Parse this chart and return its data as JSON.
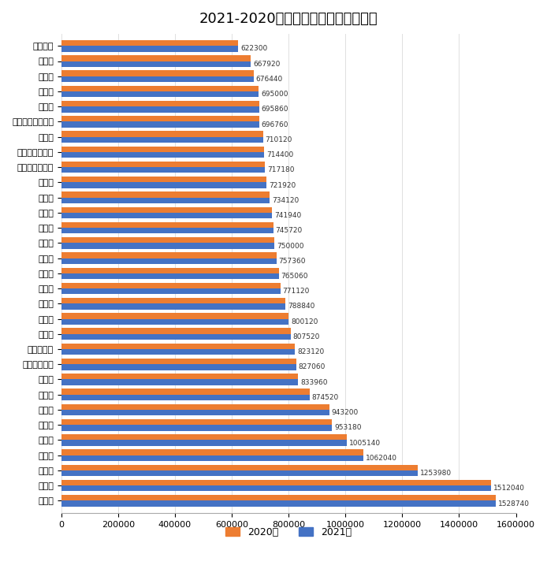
{
  "title": "2021-2020年各省交通事故死亡赔偿金",
  "categories": [
    "黑龙江省",
    "吉林省",
    "甘肃省",
    "河南省",
    "山西省",
    "新疆维吾尔自治区",
    "青海省",
    "宁夏回族自治区",
    "广西壮族自治区",
    "贵州省",
    "湖北省",
    "海南省",
    "河北省",
    "云南省",
    "陕西省",
    "四川省",
    "江西省",
    "安徽省",
    "重庆市",
    "辽宁省",
    "西藏自治区",
    "内蒙古自治区",
    "湖南省",
    "山东省",
    "福建省",
    "天津市",
    "广东省",
    "江苏省",
    "浙江省",
    "北京市",
    "上海市"
  ],
  "values_2021": [
    622300,
    667920,
    676440,
    695000,
    695860,
    696760,
    710120,
    714400,
    717180,
    721920,
    734120,
    741940,
    745720,
    750000,
    757360,
    765060,
    771120,
    788840,
    800120,
    807520,
    823120,
    827060,
    833960,
    874520,
    943200,
    953180,
    1005140,
    1062040,
    1253980,
    1512040,
    1528740
  ],
  "values_2020": [
    622300,
    667920,
    676440,
    695000,
    695860,
    696760,
    710120,
    714400,
    717180,
    721920,
    734120,
    741940,
    745720,
    750000,
    757360,
    765060,
    771120,
    788840,
    800120,
    807520,
    823120,
    827060,
    833960,
    874520,
    943200,
    953180,
    1005140,
    1062040,
    1253980,
    1512040,
    1528740
  ],
  "color_2020": "#ED7D31",
  "color_2021": "#4472C4",
  "legend_2020": "2020年",
  "legend_2021": "2021年",
  "xlim": [
    0,
    1600000
  ],
  "xticks": [
    0,
    200000,
    400000,
    600000,
    800000,
    1000000,
    1200000,
    1400000,
    1600000
  ],
  "background_color": "#FFFFFF",
  "title_fontsize": 13,
  "grid_color": "#E0E0E0",
  "label_fontsize": 6.5,
  "bar_height": 0.38,
  "ytick_fontsize": 8,
  "xtick_fontsize": 8
}
